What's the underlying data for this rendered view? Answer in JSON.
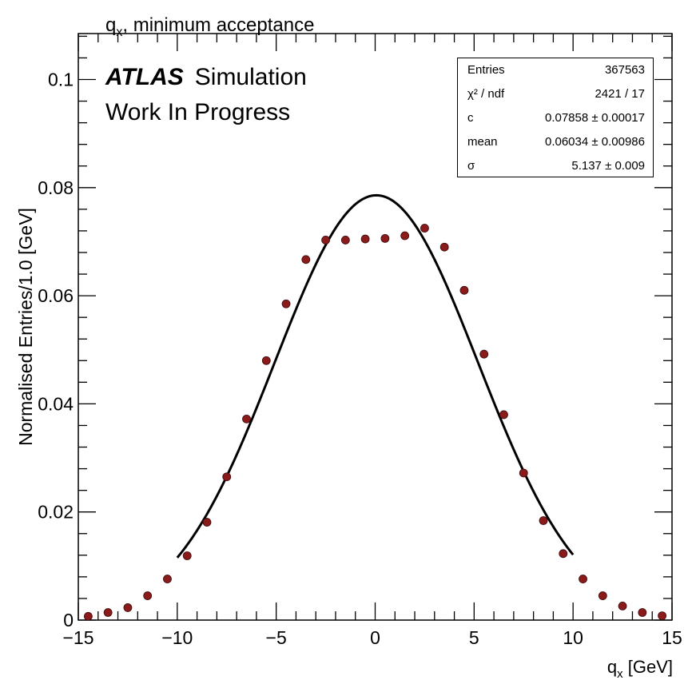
{
  "header": {
    "title_main": "q",
    "title_sub": "x",
    "title_rest": ", minimum acceptance"
  },
  "labels": {
    "experiment": "ATLAS",
    "experiment_tag": "Simulation",
    "status": "Work In Progress"
  },
  "stats_box": {
    "rows": [
      {
        "key": "Entries",
        "value": "367563"
      },
      {
        "key": "χ² / ndf",
        "value": "2421 / 17"
      },
      {
        "key": "c",
        "value": "0.07858 ± 0.00017"
      },
      {
        "key": "mean",
        "value": "0.06034 ± 0.00986"
      },
      {
        "key": "σ",
        "value": "5.137 ± 0.009"
      }
    ]
  },
  "chart_data": {
    "type": "scatter",
    "xlabel_main": "q",
    "xlabel_sub": "x",
    "xlabel_rest": " [GeV]",
    "ylabel": "Normalised Entries/1.0 [GeV]",
    "xlim": [
      -15,
      15
    ],
    "ylim": [
      0,
      0.1085
    ],
    "x_ticks": [
      -15,
      -10,
      -5,
      0,
      5,
      10,
      15
    ],
    "x_tick_labels": [
      "−15",
      "−10",
      "−5",
      "0",
      "5",
      "10",
      "15"
    ],
    "y_ticks": [
      0,
      0.02,
      0.04,
      0.06,
      0.08,
      0.1
    ],
    "y_tick_labels": [
      "0",
      "0.02",
      "0.04",
      "0.06",
      "0.08",
      "0.1"
    ],
    "grid": false,
    "marker_color": "#8b1a1a",
    "fit_color": "#000000",
    "series": [
      {
        "kind": "points",
        "x": [
          -14.5,
          -13.5,
          -12.5,
          -11.5,
          -10.5,
          -9.5,
          -8.5,
          -7.5,
          -6.5,
          -5.5,
          -4.5,
          -3.5,
          -2.5,
          -1.5,
          -0.5,
          0.5,
          1.5,
          2.5,
          3.5,
          4.5,
          5.5,
          6.5,
          7.5,
          8.5,
          9.5,
          10.5,
          11.5,
          12.5,
          13.5,
          14.5
        ],
        "y": [
          0.0007,
          0.0014,
          0.0023,
          0.0045,
          0.0076,
          0.0119,
          0.0181,
          0.0265,
          0.0372,
          0.048,
          0.0585,
          0.0667,
          0.0703,
          0.0703,
          0.0705,
          0.0706,
          0.0711,
          0.0725,
          0.069,
          0.061,
          0.0492,
          0.038,
          0.0272,
          0.0184,
          0.0123,
          0.0076,
          0.0045,
          0.0026,
          0.0014,
          0.0008
        ]
      },
      {
        "kind": "fit",
        "function": "gaus",
        "range": [
          -10,
          10
        ],
        "c": 0.07858,
        "mean": 0.06034,
        "sigma": 5.137
      }
    ]
  }
}
